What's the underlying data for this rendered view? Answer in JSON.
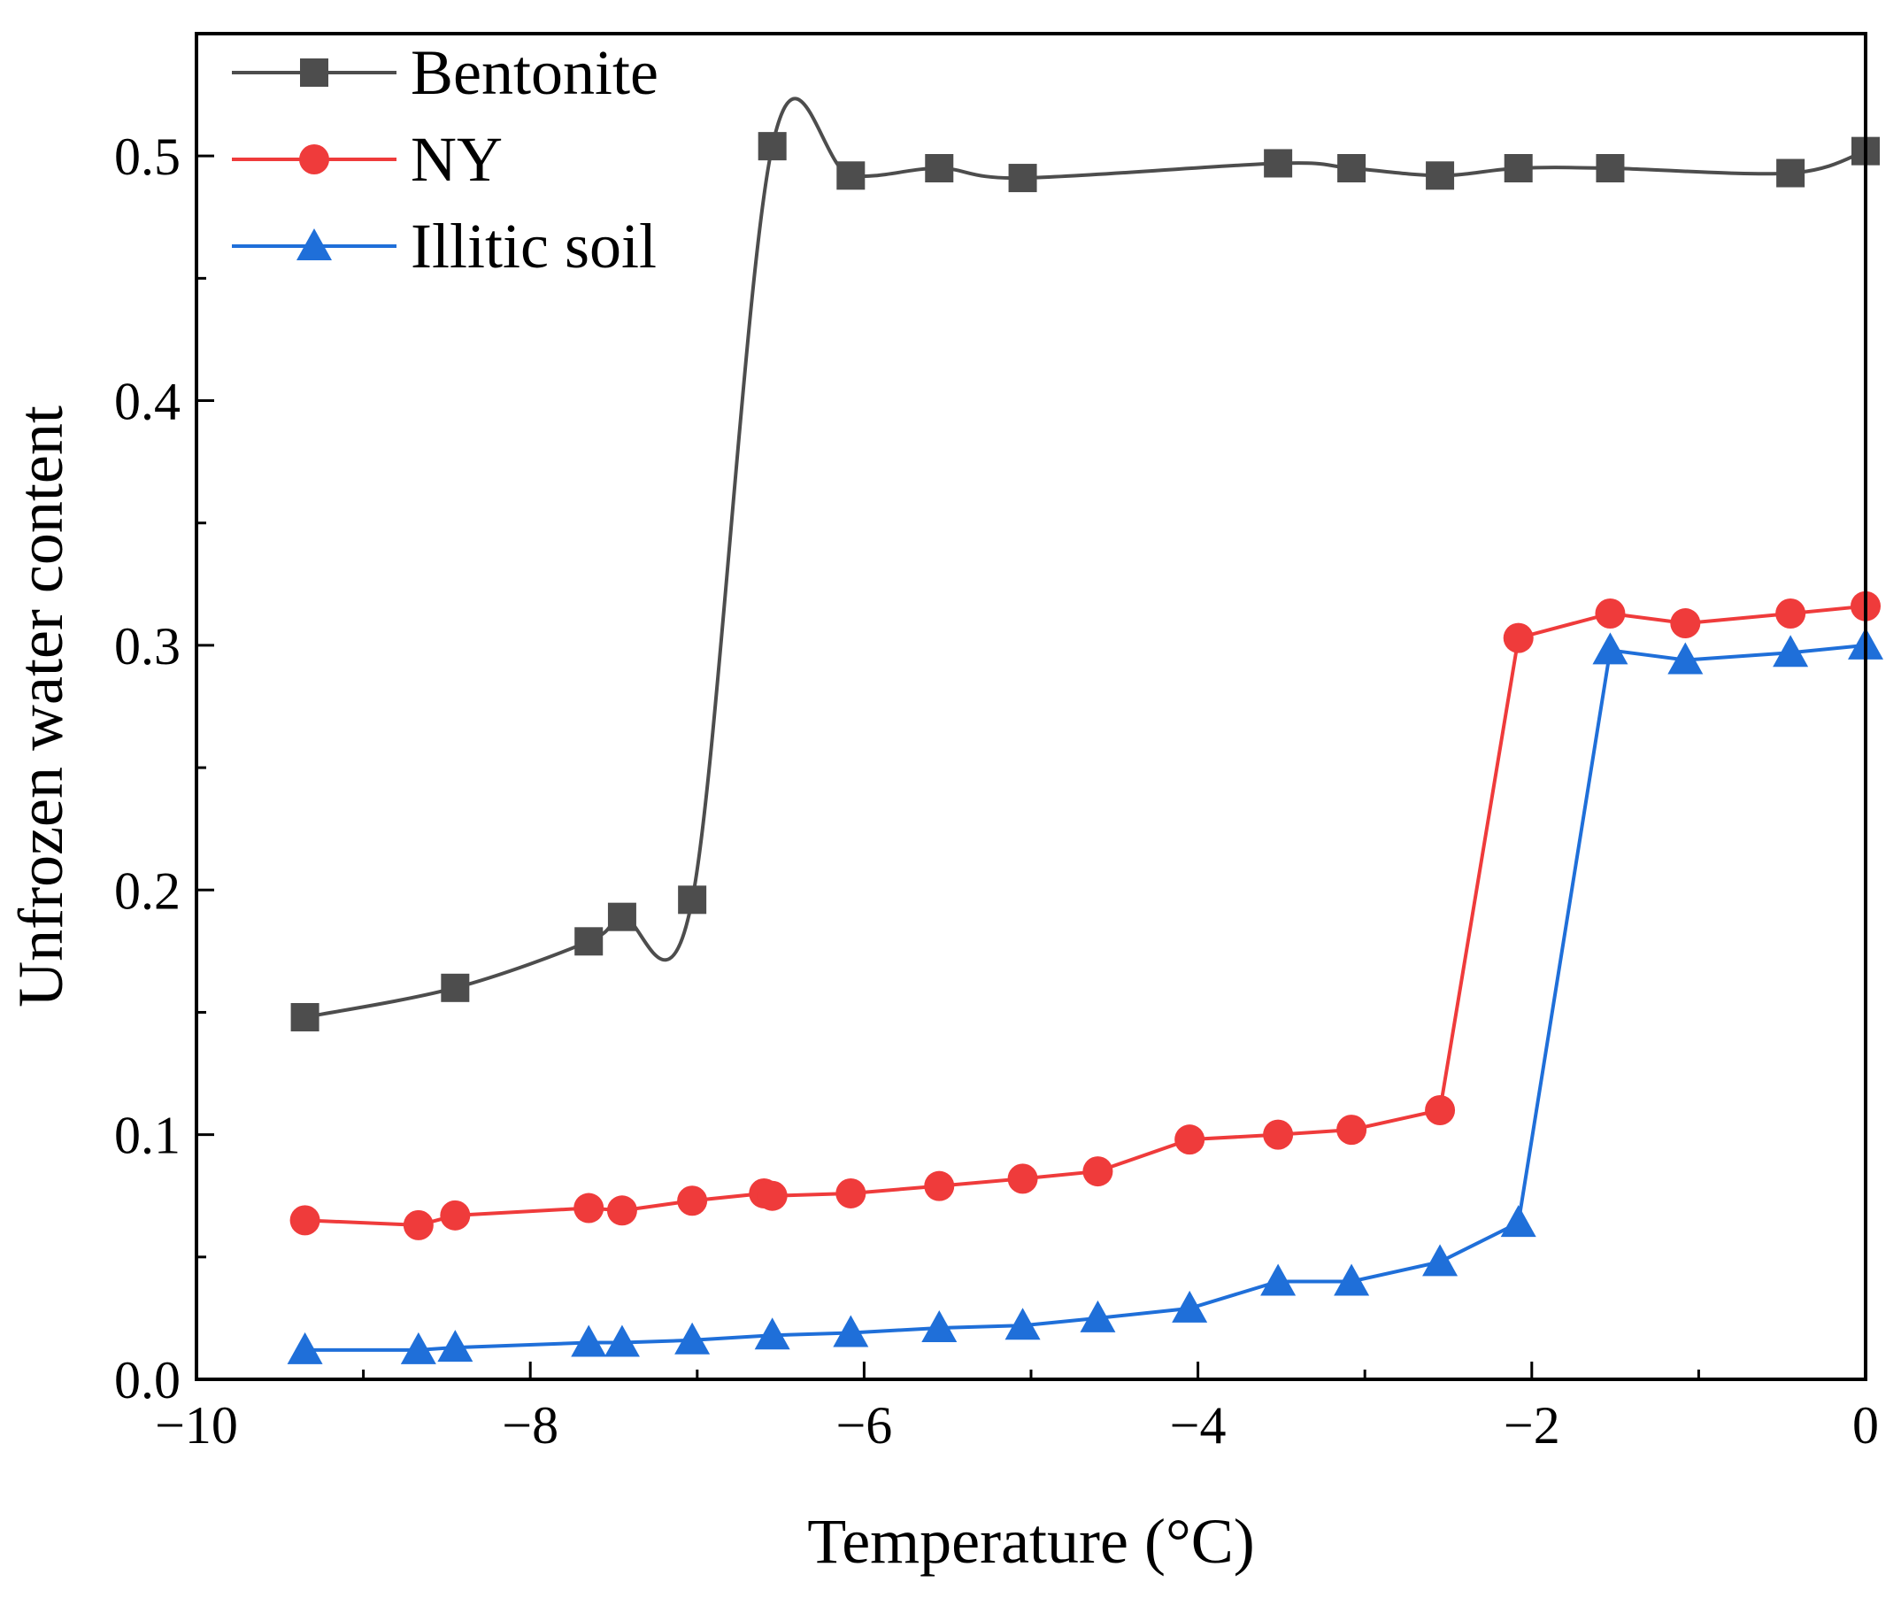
{
  "chart_data": {
    "type": "line",
    "xlabel": "Temperature (°C)",
    "ylabel": "Unfrozen water content",
    "xlim": [
      -10,
      0
    ],
    "ylim": [
      0,
      0.55
    ],
    "xticks": [
      -10,
      -8,
      -6,
      -4,
      -2,
      0
    ],
    "xtick_labels": [
      "−10",
      "−8",
      "−6",
      "−4",
      "−2",
      "0"
    ],
    "yticks": [
      0.0,
      0.1,
      0.2,
      0.3,
      0.4,
      0.5
    ],
    "ytick_labels": [
      "0.0",
      "0.1",
      "0.2",
      "0.3",
      "0.4",
      "0.5"
    ],
    "legend_position": "top-left",
    "series": [
      {
        "name": "Bentonite",
        "color": "#4d4d4d",
        "marker": "square",
        "x": [
          -9.35,
          -8.45,
          -7.65,
          -7.45,
          -7.03,
          -6.55,
          -6.08,
          -5.55,
          -5.05,
          -3.52,
          -3.08,
          -2.55,
          -2.08,
          -1.53,
          -0.45,
          0.0
        ],
        "y": [
          0.148,
          0.16,
          0.179,
          0.189,
          0.196,
          0.504,
          0.492,
          0.495,
          0.491,
          0.497,
          0.495,
          0.492,
          0.495,
          0.495,
          0.493,
          0.502
        ]
      },
      {
        "name": "NY",
        "color": "#ef3b3b",
        "marker": "circle",
        "x": [
          -9.35,
          -8.67,
          -8.45,
          -7.65,
          -7.45,
          -7.03,
          -6.6,
          -6.55,
          -6.08,
          -5.55,
          -5.05,
          -4.6,
          -4.05,
          -3.52,
          -3.08,
          -2.55,
          -2.08,
          -1.53,
          -1.08,
          -0.45,
          0.0
        ],
        "y": [
          0.065,
          0.063,
          0.067,
          0.07,
          0.069,
          0.073,
          0.076,
          0.075,
          0.076,
          0.079,
          0.082,
          0.085,
          0.098,
          0.1,
          0.102,
          0.11,
          0.303,
          0.313,
          0.309,
          0.313,
          0.316
        ]
      },
      {
        "name": "Illitic soil",
        "color": "#1f6fd9",
        "marker": "triangle",
        "x": [
          -9.35,
          -8.67,
          -8.45,
          -7.65,
          -7.45,
          -7.03,
          -6.55,
          -6.08,
          -5.55,
          -5.05,
          -4.6,
          -4.05,
          -3.52,
          -3.08,
          -2.55,
          -2.08,
          -1.53,
          -1.08,
          -0.45,
          0.0
        ],
        "y": [
          0.012,
          0.012,
          0.013,
          0.015,
          0.015,
          0.016,
          0.018,
          0.019,
          0.021,
          0.022,
          0.025,
          0.029,
          0.04,
          0.04,
          0.048,
          0.064,
          0.298,
          0.294,
          0.297,
          0.3
        ]
      }
    ]
  }
}
